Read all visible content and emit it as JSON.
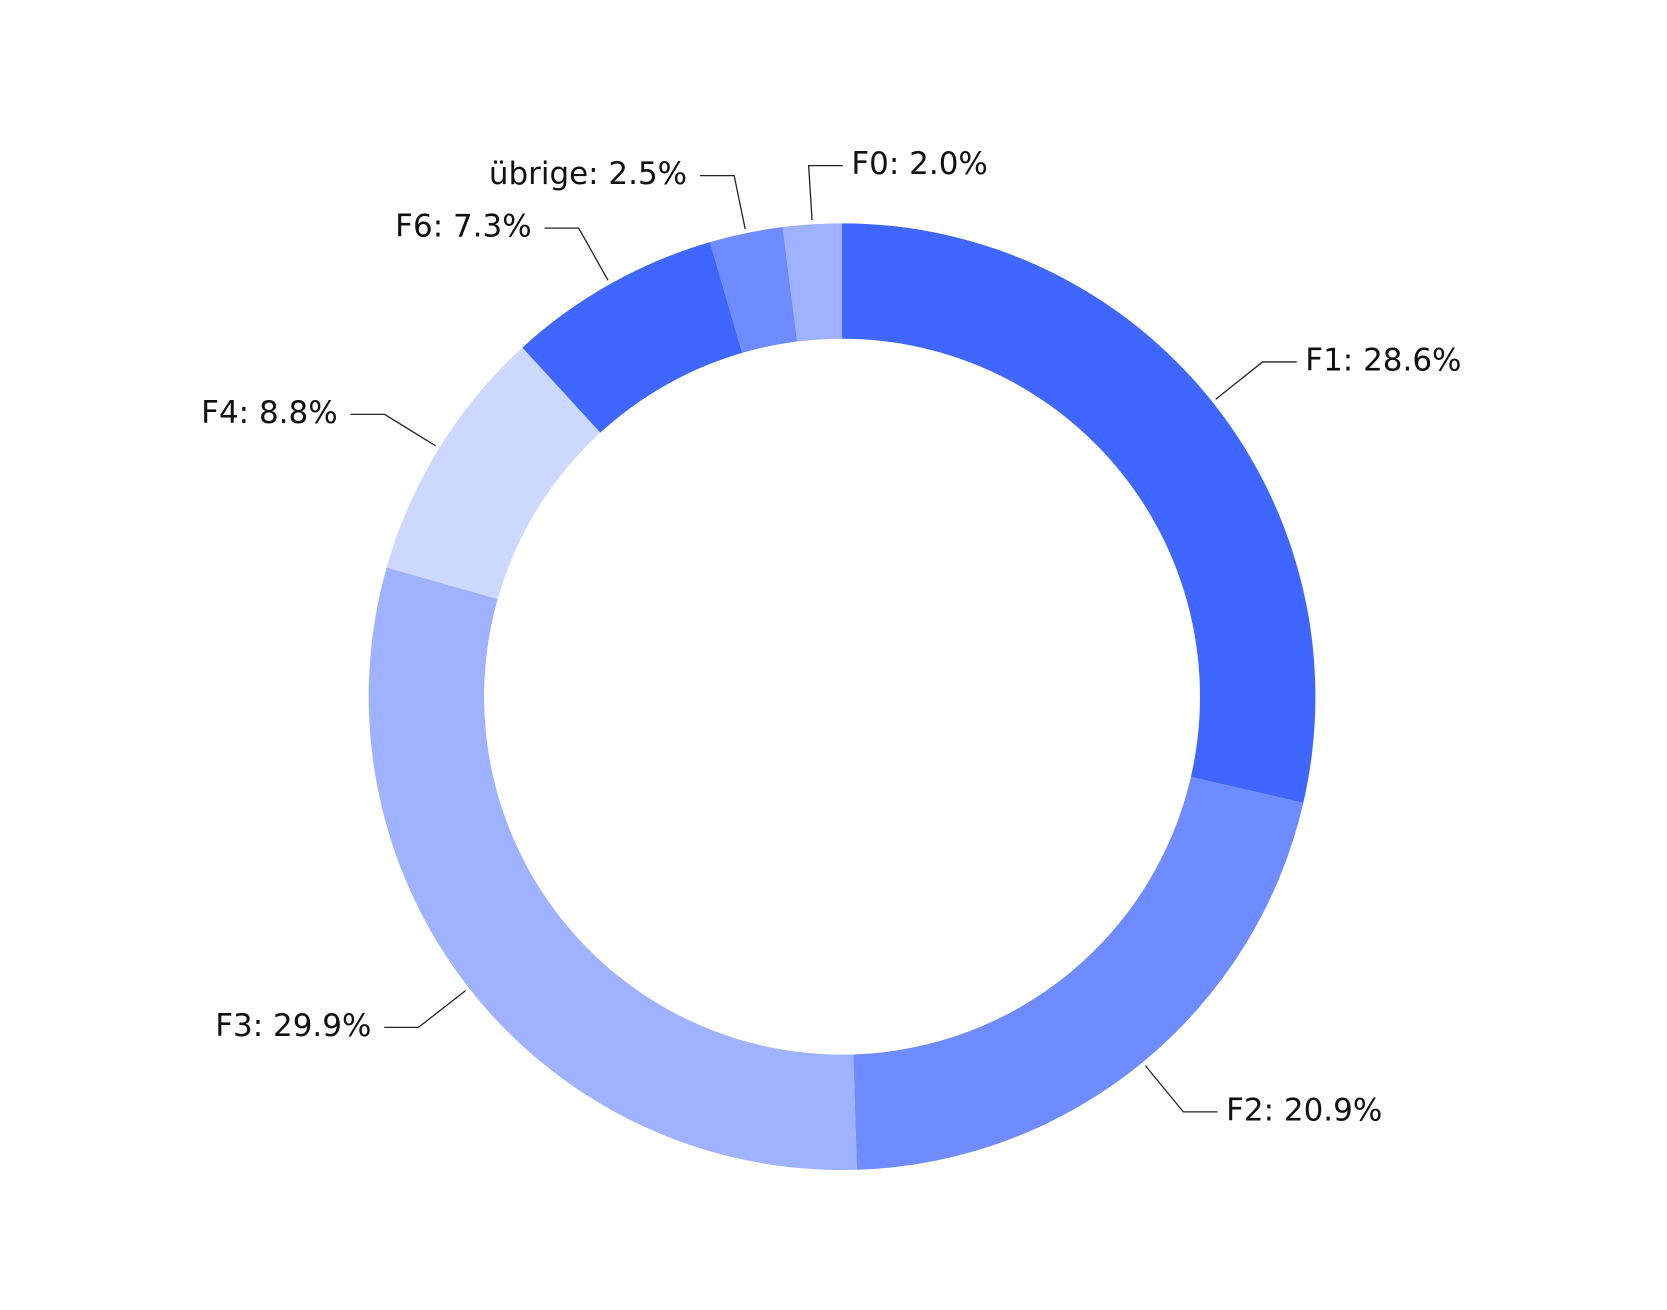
{
  "chart_data": {
    "type": "donut",
    "values": [
      28.6,
      20.9,
      29.9,
      8.8,
      7.3,
      2.5,
      2.0
    ],
    "value_labels": [
      "F1: 28.6%",
      "F2: 20.9%",
      "F3: 29.9%",
      "F4: 8.8%",
      "F6: 7.3%",
      "übrige: 2.5%",
      "F0: 2.0%"
    ],
    "colors": [
      "#3f66ff",
      "#6e8bff",
      "#9fb2ff",
      "#cdd8ff",
      "#3f66ff",
      "#6e8bff",
      "#9fb2ff"
    ]
  }
}
